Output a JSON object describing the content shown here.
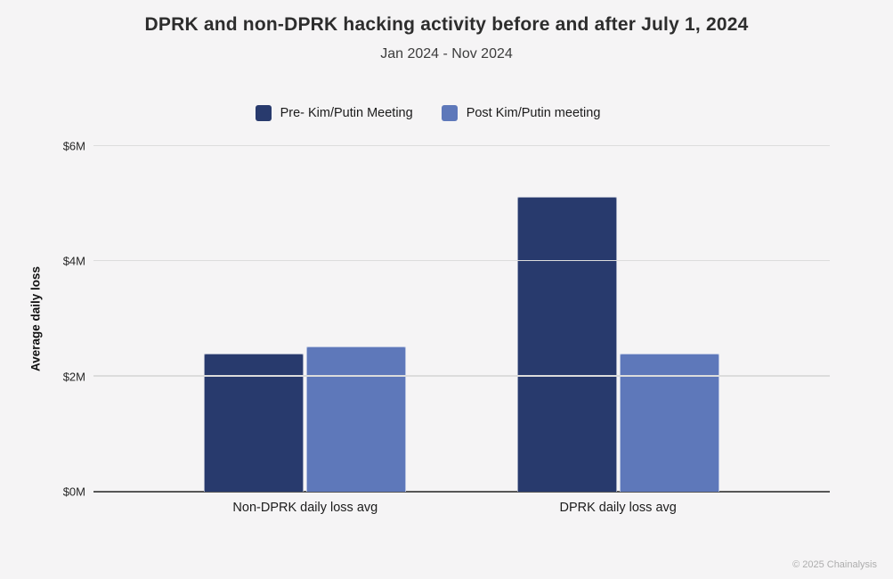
{
  "page": {
    "footer": "© 2025 Chainalysis"
  },
  "colors": {
    "background": "#f5f4f5",
    "pre_series": "#283a6d",
    "post_series": "#5e78ba",
    "gridline": "#dcdcdc",
    "axis_line": "#575757"
  },
  "chart_data": {
    "type": "bar",
    "title": "DPRK and non-DPRK hacking activity before and after July 1, 2024",
    "subtitle": "Jan 2024 - Nov 2024",
    "categories": [
      "Non-DPRK daily loss avg",
      "DPRK daily loss avg"
    ],
    "series": [
      {
        "name": "Pre- Kim/Putin Meeting",
        "color": "#283a6d",
        "values": [
          2.4,
          5.12
        ]
      },
      {
        "name": "Post Kim/Putin meeting",
        "color": "#5e78ba",
        "values": [
          2.52,
          2.4
        ]
      }
    ],
    "xlabel": "",
    "ylabel": "Average daily loss",
    "ylim": [
      0,
      6
    ],
    "yticks": [
      {
        "value": 0,
        "label": "$0M"
      },
      {
        "value": 2,
        "label": "$2M"
      },
      {
        "value": 4,
        "label": "$4M"
      },
      {
        "value": 6,
        "label": "$6M"
      }
    ],
    "grid": "horizontal",
    "legend_position": "top"
  }
}
